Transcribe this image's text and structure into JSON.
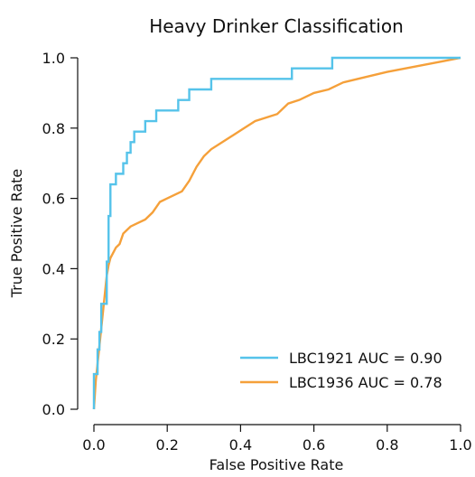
{
  "chart_data": {
    "type": "line",
    "title": "Heavy Drinker Classification",
    "xlabel": "False Positive Rate",
    "ylabel": "True Positive Rate",
    "xlim": [
      0.0,
      1.0
    ],
    "ylim": [
      0.0,
      1.0
    ],
    "xticks": [
      "0.0",
      "0.2",
      "0.4",
      "0.6",
      "0.8",
      "1.0"
    ],
    "yticks": [
      "0.0",
      "0.2",
      "0.4",
      "0.6",
      "0.8",
      "1.0"
    ],
    "grid": false,
    "legend_position": "lower-right",
    "series": [
      {
        "name": "LBC1921 AUC = 0.90",
        "color": "#55c3ea",
        "x": [
          0.0,
          0.0,
          0.01,
          0.01,
          0.015,
          0.015,
          0.02,
          0.02,
          0.035,
          0.035,
          0.04,
          0.04,
          0.045,
          0.045,
          0.06,
          0.06,
          0.08,
          0.08,
          0.09,
          0.09,
          0.1,
          0.1,
          0.11,
          0.11,
          0.14,
          0.14,
          0.17,
          0.17,
          0.23,
          0.23,
          0.26,
          0.26,
          0.32,
          0.32,
          0.54,
          0.54,
          0.65,
          0.65,
          1.0
        ],
        "y": [
          0.0,
          0.1,
          0.1,
          0.17,
          0.17,
          0.22,
          0.22,
          0.3,
          0.3,
          0.42,
          0.42,
          0.55,
          0.55,
          0.64,
          0.64,
          0.67,
          0.67,
          0.7,
          0.7,
          0.73,
          0.73,
          0.76,
          0.76,
          0.79,
          0.79,
          0.82,
          0.82,
          0.85,
          0.85,
          0.88,
          0.88,
          0.91,
          0.91,
          0.94,
          0.94,
          0.97,
          0.97,
          1.0,
          1.0
        ]
      },
      {
        "name": "LBC1936 AUC = 0.78",
        "color": "#f5a03a",
        "x": [
          0.0,
          0.005,
          0.01,
          0.015,
          0.02,
          0.025,
          0.03,
          0.035,
          0.04,
          0.045,
          0.05,
          0.06,
          0.07,
          0.08,
          0.09,
          0.1,
          0.12,
          0.14,
          0.16,
          0.18,
          0.2,
          0.22,
          0.24,
          0.26,
          0.28,
          0.3,
          0.32,
          0.35,
          0.38,
          0.41,
          0.44,
          0.47,
          0.5,
          0.53,
          0.56,
          0.6,
          0.64,
          0.68,
          0.72,
          0.76,
          0.8,
          0.85,
          0.9,
          0.95,
          1.0
        ],
        "y": [
          0.0,
          0.08,
          0.13,
          0.18,
          0.23,
          0.28,
          0.33,
          0.38,
          0.41,
          0.43,
          0.44,
          0.46,
          0.47,
          0.5,
          0.51,
          0.52,
          0.53,
          0.54,
          0.56,
          0.59,
          0.6,
          0.61,
          0.62,
          0.65,
          0.69,
          0.72,
          0.74,
          0.76,
          0.78,
          0.8,
          0.82,
          0.83,
          0.84,
          0.87,
          0.88,
          0.9,
          0.91,
          0.93,
          0.94,
          0.95,
          0.96,
          0.97,
          0.98,
          0.99,
          1.0
        ]
      }
    ]
  }
}
